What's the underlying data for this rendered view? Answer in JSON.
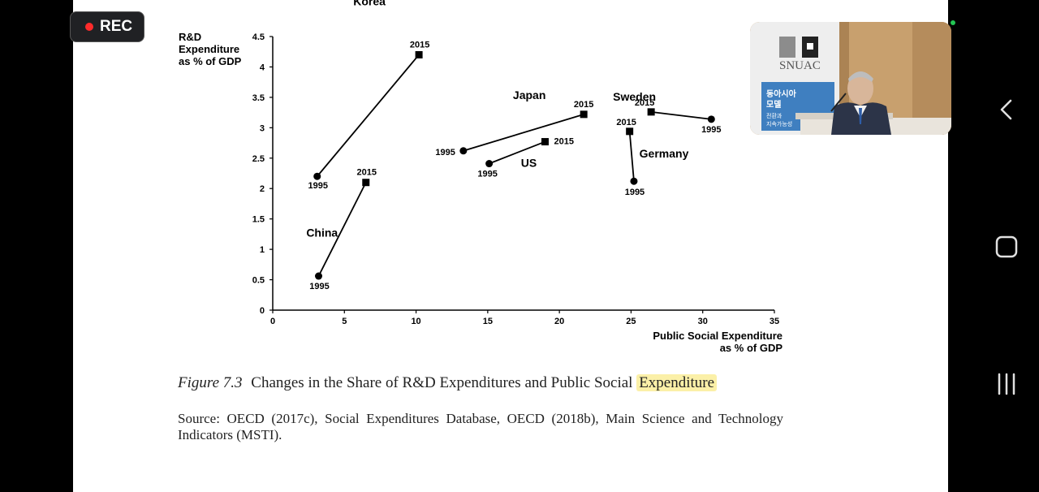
{
  "recorder": {
    "label": "REC"
  },
  "chart_data": {
    "type": "scatter",
    "ylabel": [
      "R&D",
      "Expenditure",
      "as % of GDP"
    ],
    "xlabel": [
      "Public Social Expenditure",
      "as % of GDP"
    ],
    "xlim": [
      0,
      35
    ],
    "ylim": [
      0,
      4.5
    ],
    "xticks": [
      "0",
      "5",
      "10",
      "15",
      "20",
      "25",
      "30",
      "35"
    ],
    "yticks": [
      "0",
      "0.5",
      "1",
      "1.5",
      "2",
      "2.5",
      "3",
      "3.5",
      "4",
      "4.5"
    ],
    "series": [
      {
        "name": "Korea",
        "start": {
          "label": "1995",
          "x": 3.1,
          "y": 2.2
        },
        "end": {
          "label": "2015",
          "x": 10.2,
          "y": 4.2
        }
      },
      {
        "name": "China",
        "start": {
          "label": "1995",
          "x": 3.2,
          "y": 0.56
        },
        "end": {
          "label": "2015",
          "x": 6.5,
          "y": 2.1
        }
      },
      {
        "name": "Japan",
        "start": {
          "label": "1995",
          "x": 13.3,
          "y": 2.62
        },
        "end": {
          "label": "2015",
          "x": 21.7,
          "y": 3.22
        }
      },
      {
        "name": "US",
        "start": {
          "label": "1995",
          "x": 15.1,
          "y": 2.41
        },
        "end": {
          "label": "2015",
          "x": 19.0,
          "y": 2.77
        }
      },
      {
        "name": "Germany",
        "start": {
          "label": "1995",
          "x": 25.2,
          "y": 2.12
        },
        "end": {
          "label": "2015",
          "x": 24.9,
          "y": 2.94
        }
      },
      {
        "name": "Sweden",
        "start": {
          "label": "1995",
          "x": 30.6,
          "y": 3.14
        },
        "end": {
          "label": "2015",
          "x": 26.4,
          "y": 3.26
        }
      }
    ]
  },
  "figure": {
    "number": "Figure 7.3",
    "caption_main": "Changes in the Share of R&D Expenditures and Public Social",
    "caption_highlight": "Expenditure",
    "source": "Source: OECD (2017c), Social Expenditures Database, OECD (2018b), Main Science and Technology Indicators (MSTI)."
  },
  "video": {
    "sign": "SNUAC",
    "banner": [
      "동아시아",
      "모델",
      "전환과",
      "지속가능성"
    ]
  },
  "colors": {
    "highlight": "#fbf0a8",
    "rec_dot": "#ff2b2b",
    "status_dot": "#23c552"
  }
}
